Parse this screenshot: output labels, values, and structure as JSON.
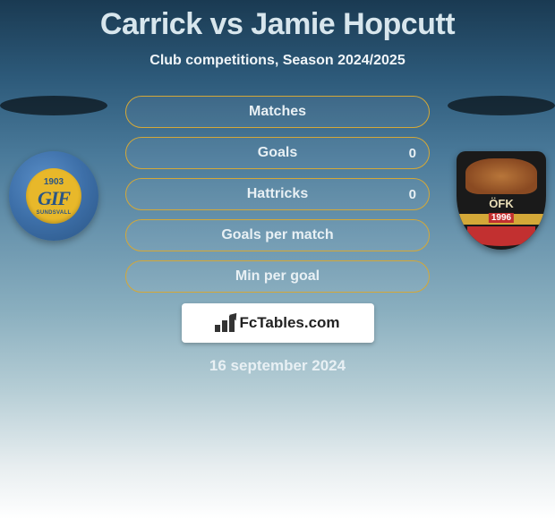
{
  "title": "Carrick vs Jamie Hopcutt",
  "subtitle": "Club competitions, Season 2024/2025",
  "crests": {
    "left": {
      "year": "1903",
      "abbrev": "GIF",
      "city": "SUNDSVALL"
    },
    "right": {
      "abbrev": "ÖFK",
      "year": "1996"
    }
  },
  "bars": [
    {
      "label": "Matches",
      "right": ""
    },
    {
      "label": "Goals",
      "right": "0"
    },
    {
      "label": "Hattricks",
      "right": "0"
    },
    {
      "label": "Goals per match",
      "right": ""
    },
    {
      "label": "Min per goal",
      "right": ""
    }
  ],
  "brand": "FcTables.com",
  "date": "16 september 2024",
  "style": {
    "bar_border_color": "#d4a838",
    "bar_text_color": "#e8f0f4",
    "title_color": "#d8e6ed"
  }
}
